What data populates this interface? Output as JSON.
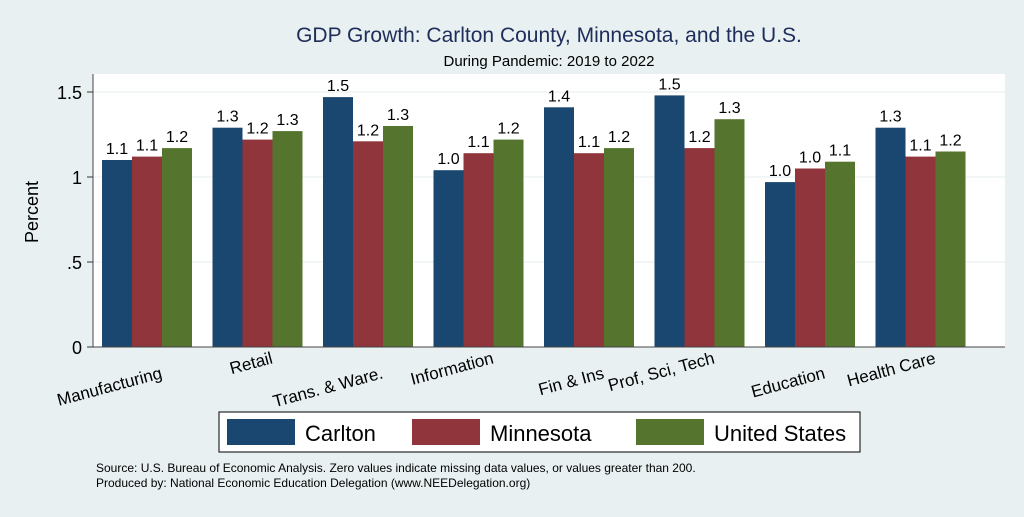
{
  "chart_data": {
    "type": "bar",
    "title": "GDP Growth: Carlton County, Minnesota, and the U.S.",
    "subtitle": "During Pandemic: 2019 to 2022",
    "xlabel": "",
    "ylabel": "Percent",
    "ylim": [
      0,
      1.6
    ],
    "yticks": [
      0,
      0.5,
      1,
      1.5
    ],
    "ytick_labels": [
      "0",
      ".5",
      "1",
      "1.5"
    ],
    "grid": true,
    "categories": [
      "Manufacturing",
      "Retail",
      "Trans. & Ware.",
      "Information",
      "Fin & Ins",
      "Prof, Sci, Tech",
      "Education",
      "Health Care"
    ],
    "series": [
      {
        "name": "Carlton",
        "color": "#1a476f",
        "values": [
          1.1,
          1.29,
          1.47,
          1.04,
          1.41,
          1.48,
          0.97,
          1.29
        ],
        "labels": [
          "1.1",
          "1.3",
          "1.5",
          "1.0",
          "1.4",
          "1.5",
          "1.0",
          "1.3"
        ]
      },
      {
        "name": "Minnesota",
        "color": "#90353b",
        "values": [
          1.12,
          1.22,
          1.21,
          1.14,
          1.14,
          1.17,
          1.05,
          1.12
        ],
        "labels": [
          "1.1",
          "1.2",
          "1.2",
          "1.1",
          "1.1",
          "1.2",
          "1.0",
          "1.1"
        ]
      },
      {
        "name": "United States",
        "color": "#55752f",
        "values": [
          1.17,
          1.27,
          1.3,
          1.22,
          1.17,
          1.34,
          1.09,
          1.15
        ],
        "labels": [
          "1.2",
          "1.3",
          "1.3",
          "1.2",
          "1.2",
          "1.3",
          "1.1",
          "1.2"
        ]
      }
    ],
    "legend_position": "bottom",
    "notes": [
      "Source: U.S. Bureau of Economic Analysis. Zero values indicate missing data values, or values greater than 200.",
      "Produced by: National Economic Education Delegation (www.NEEDelegation.org)"
    ]
  }
}
